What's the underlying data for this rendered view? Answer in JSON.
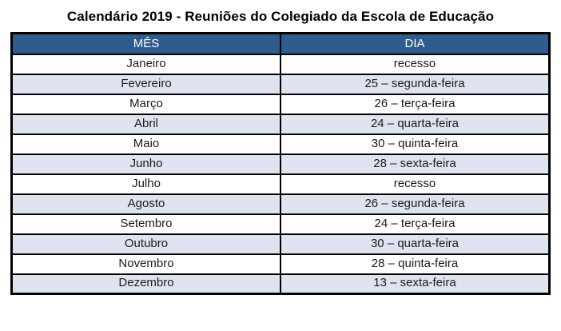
{
  "title": "Calendário 2019 - Reuniões do Colegiado da Escola de Educação",
  "table": {
    "columns": [
      "MÊS",
      "DIA"
    ],
    "rows": [
      {
        "mes": "Janeiro",
        "dia": "recesso"
      },
      {
        "mes": "Fevereiro",
        "dia": "25 – segunda-feira"
      },
      {
        "mes": "Março",
        "dia": "26 – terça-feira"
      },
      {
        "mes": "Abril",
        "dia": "24 – quarta-feira"
      },
      {
        "mes": "Maio",
        "dia": "30 – quinta-feira"
      },
      {
        "mes": "Junho",
        "dia": "28 – sexta-feira"
      },
      {
        "mes": "Julho",
        "dia": "recesso"
      },
      {
        "mes": "Agosto",
        "dia": "26 – segunda-feira"
      },
      {
        "mes": "Setembro",
        "dia": "24 – terça-feira"
      },
      {
        "mes": "Outubro",
        "dia": "30 – quarta-feira"
      },
      {
        "mes": "Novembro",
        "dia": "28 – quinta-feira"
      },
      {
        "mes": "Dezembro",
        "dia": "13 – sexta-feira"
      }
    ]
  },
  "colors": {
    "header_bg": "#2d5c8d",
    "header_text": "#ffffff",
    "alt_row_bg": "#dde4ef",
    "row_bg": "#ffffff",
    "border": "#000000",
    "text": "#1a1a1a"
  }
}
